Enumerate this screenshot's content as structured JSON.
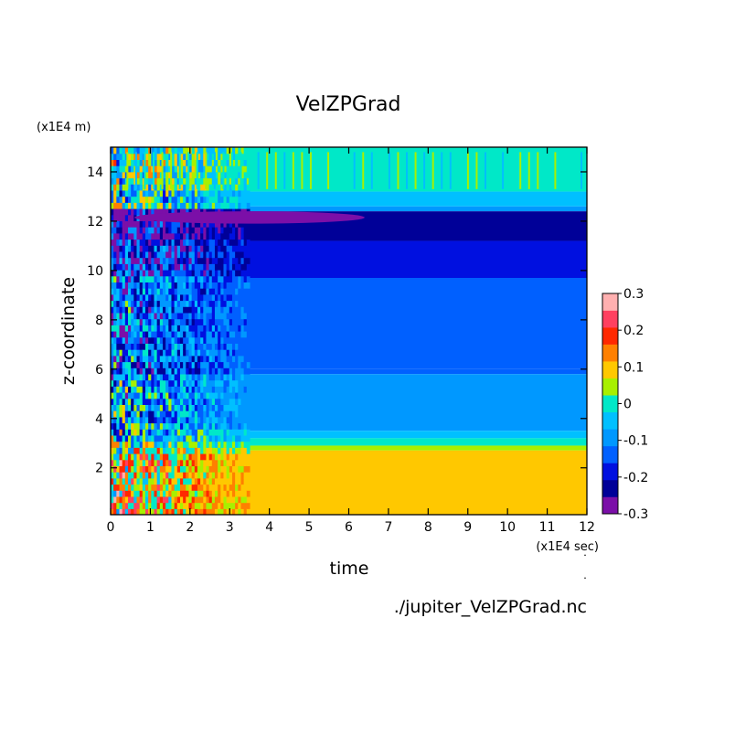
{
  "chart_data": {
    "type": "heatmap",
    "title": "VelZPGrad",
    "xlabel": "time",
    "ylabel": "z-coordinate",
    "x_unit": "(x1E4 sec)",
    "y_unit": "(x1E4 m)",
    "footer": "./jupiter_VelZPGrad.nc",
    "xlim": [
      0,
      12
    ],
    "ylim": [
      0.1,
      15
    ],
    "x_ticks": [
      "0",
      "1",
      "2",
      "3",
      "4",
      "5",
      "6",
      "7",
      "8",
      "9",
      "10",
      "11",
      "12"
    ],
    "y_ticks": [
      "2",
      "4",
      "6",
      "8",
      "10",
      "12",
      "14"
    ],
    "colorbar": {
      "ticks": [
        "-0.3",
        "-0.2",
        "-0.1",
        "0",
        "0.1",
        "0.2",
        "0.3"
      ],
      "levels": [
        -0.3,
        -0.25,
        -0.2,
        -0.15,
        -0.1,
        -0.05,
        0,
        0.05,
        0.1,
        0.15,
        0.2,
        0.25,
        0.3
      ],
      "colors": [
        "#7b0fa8",
        "#000098",
        "#0010e0",
        "#0060ff",
        "#0098ff",
        "#00c0ff",
        "#00e8c8",
        "#a8f000",
        "#ffc800",
        "#ff8000",
        "#ff2800",
        "#ff4060",
        "#ffb0b0"
      ]
    },
    "steady_profile": [
      {
        "z": [
          13.2,
          15.0
        ],
        "value": 0.03
      },
      {
        "z": [
          12.6,
          13.2
        ],
        "value": -0.02
      },
      {
        "z": [
          12.4,
          12.6
        ],
        "value": -0.07
      },
      {
        "z": [
          11.2,
          12.4
        ],
        "value": -0.23
      },
      {
        "z": [
          9.7,
          11.2
        ],
        "value": -0.18
      },
      {
        "z": [
          6.0,
          9.7
        ],
        "value": -0.12
      },
      {
        "z": [
          5.8,
          6.0
        ],
        "value": -0.13
      },
      {
        "z": [
          3.5,
          5.8
        ],
        "value": -0.07
      },
      {
        "z": [
          3.2,
          3.5
        ],
        "value": -0.02
      },
      {
        "z": [
          2.9,
          3.2
        ],
        "value": 0.03
      },
      {
        "z": [
          2.7,
          2.9
        ],
        "value": 0.08
      },
      {
        "z": [
          0.1,
          2.7
        ],
        "value": 0.13
      }
    ],
    "minimum_region": {
      "z": [
        11.9,
        12.4
      ],
      "time": [
        0.6,
        6.4
      ],
      "value": -0.28
    },
    "transient_region_time": [
      0,
      3.5
    ]
  }
}
